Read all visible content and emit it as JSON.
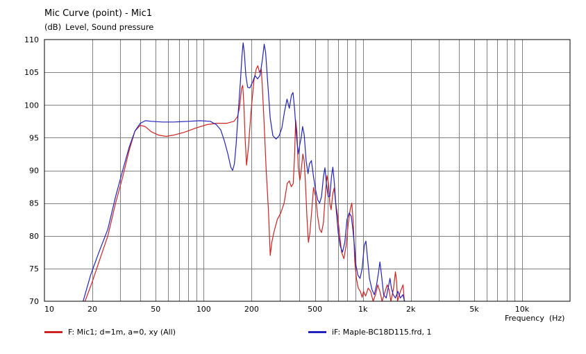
{
  "title": "Mic Curve (point) - Mic1",
  "ylabel_unit": "(dB)",
  "ylabel": "Level, Sound pressure",
  "xlabel": "Frequency",
  "xlabel_unit": "(Hz)",
  "legend": [
    {
      "label": "F: Mic1; d=1m, a=0, xy  (All)",
      "color": "#cc2222"
    },
    {
      "label": "iF: Maple-BC18D115.frd, 1",
      "color": "#2222bb"
    }
  ],
  "chart_data": {
    "type": "line",
    "title": "Mic Curve (point) - Mic1",
    "xlabel": "Frequency (Hz)",
    "ylabel": "(dB) Level, Sound pressure",
    "xscale": "log",
    "xlim": [
      10,
      20000
    ],
    "ylim": [
      70,
      110
    ],
    "grid": true,
    "legend_position": "bottom",
    "x_ticks": [
      {
        "v": 10,
        "label": "10"
      },
      {
        "v": 20,
        "label": "20"
      },
      {
        "v": 50,
        "label": "50"
      },
      {
        "v": 100,
        "label": "100"
      },
      {
        "v": 200,
        "label": "200"
      },
      {
        "v": 500,
        "label": "500"
      },
      {
        "v": 1000,
        "label": "1k"
      },
      {
        "v": 2000,
        "label": "2k"
      },
      {
        "v": 5000,
        "label": "5k"
      },
      {
        "v": 10000,
        "label": "10k"
      }
    ],
    "y_ticks": [
      70,
      75,
      80,
      85,
      90,
      95,
      100,
      105,
      110
    ],
    "series": [
      {
        "name": "F: Mic1; d=1m, a=0, xy  (All)",
        "color": "#cc2222",
        "points": [
          [
            18,
            70
          ],
          [
            20,
            73
          ],
          [
            22,
            76
          ],
          [
            25,
            80
          ],
          [
            28,
            85
          ],
          [
            31,
            89
          ],
          [
            34,
            93
          ],
          [
            37,
            96
          ],
          [
            40,
            96.9
          ],
          [
            43,
            96.7
          ],
          [
            47,
            95.9
          ],
          [
            52,
            95.4
          ],
          [
            58,
            95.2
          ],
          [
            65,
            95.4
          ],
          [
            75,
            95.8
          ],
          [
            90,
            96.5
          ],
          [
            105,
            97.0
          ],
          [
            120,
            97.2
          ],
          [
            140,
            97.2
          ],
          [
            155,
            97.5
          ],
          [
            163,
            98.2
          ],
          [
            168,
            99.6
          ],
          [
            173,
            102.5
          ],
          [
            176,
            103
          ],
          [
            179,
            100
          ],
          [
            182,
            95
          ],
          [
            186,
            90.8
          ],
          [
            191,
            93.5
          ],
          [
            198,
            98.8
          ],
          [
            207,
            103.8
          ],
          [
            214,
            105.5
          ],
          [
            219,
            106
          ],
          [
            224,
            105
          ],
          [
            230,
            105.5
          ],
          [
            234,
            102.5
          ],
          [
            240,
            97
          ],
          [
            247,
            90
          ],
          [
            255,
            84
          ],
          [
            262,
            77
          ],
          [
            268,
            79
          ],
          [
            276,
            80.5
          ],
          [
            290,
            82.5
          ],
          [
            305,
            83.5
          ],
          [
            320,
            85
          ],
          [
            335,
            88
          ],
          [
            345,
            88.4
          ],
          [
            355,
            87.5
          ],
          [
            365,
            88
          ],
          [
            372,
            92
          ],
          [
            378,
            97.7
          ],
          [
            385,
            96
          ],
          [
            393,
            90.5
          ],
          [
            402,
            88.5
          ],
          [
            410,
            90
          ],
          [
            420,
            92.5
          ],
          [
            428,
            91.5
          ],
          [
            436,
            88
          ],
          [
            445,
            83
          ],
          [
            455,
            79
          ],
          [
            465,
            80.5
          ],
          [
            478,
            84
          ],
          [
            490,
            87.4
          ],
          [
            505,
            86
          ],
          [
            520,
            83
          ],
          [
            535,
            81
          ],
          [
            550,
            80.5
          ],
          [
            565,
            82
          ],
          [
            580,
            86
          ],
          [
            595,
            89.2
          ],
          [
            608,
            88
          ],
          [
            620,
            85
          ],
          [
            632,
            84
          ],
          [
            648,
            86.5
          ],
          [
            660,
            87.3
          ],
          [
            675,
            85
          ],
          [
            695,
            83
          ],
          [
            712,
            80.5
          ],
          [
            735,
            77.5
          ],
          [
            760,
            76.5
          ],
          [
            785,
            78.5
          ],
          [
            810,
            82
          ],
          [
            832,
            84
          ],
          [
            852,
            85
          ],
          [
            870,
            82
          ],
          [
            890,
            76
          ],
          [
            910,
            73.5
          ],
          [
            935,
            72
          ],
          [
            965,
            71.5
          ],
          [
            990,
            70.6
          ],
          [
            1010,
            71.5
          ],
          [
            1040,
            70.8
          ],
          [
            1080,
            72
          ],
          [
            1120,
            71.5
          ],
          [
            1160,
            70
          ],
          [
            1200,
            71
          ],
          [
            1240,
            72.5
          ],
          [
            1280,
            71.5
          ],
          [
            1320,
            70
          ],
          [
            1380,
            71.5
          ],
          [
            1420,
            72.5
          ],
          [
            1460,
            71.8
          ],
          [
            1500,
            70
          ],
          [
            1560,
            72
          ],
          [
            1600,
            74.5
          ],
          [
            1630,
            73
          ],
          [
            1650,
            70
          ],
          [
            1720,
            71.5
          ],
          [
            1790,
            72.5
          ],
          [
            1820,
            70
          ]
        ]
      },
      {
        "name": "iF: Maple-BC18D115.frd, 1",
        "color": "#2222bb",
        "points": [
          [
            17.5,
            70
          ],
          [
            19.5,
            74
          ],
          [
            22,
            77.5
          ],
          [
            25,
            81
          ],
          [
            28,
            86
          ],
          [
            31,
            90
          ],
          [
            34,
            93.5
          ],
          [
            37,
            96
          ],
          [
            40,
            97.2
          ],
          [
            43,
            97.6
          ],
          [
            47,
            97.5
          ],
          [
            55,
            97.4
          ],
          [
            65,
            97.4
          ],
          [
            80,
            97.5
          ],
          [
            95,
            97.6
          ],
          [
            110,
            97.5
          ],
          [
            120,
            97.0
          ],
          [
            128,
            96.2
          ],
          [
            135,
            94.5
          ],
          [
            142,
            92.5
          ],
          [
            148,
            90.5
          ],
          [
            152,
            90
          ],
          [
            156,
            91
          ],
          [
            160,
            94
          ],
          [
            165,
            99
          ],
          [
            170,
            103.5
          ],
          [
            174,
            107.5
          ],
          [
            177,
            109.5
          ],
          [
            180,
            108
          ],
          [
            184,
            104.5
          ],
          [
            189,
            102.7
          ],
          [
            195,
            102.6
          ],
          [
            203,
            103.5
          ],
          [
            210,
            104.5
          ],
          [
            218,
            104
          ],
          [
            226,
            104.5
          ],
          [
            234,
            107
          ],
          [
            240,
            109.3
          ],
          [
            245,
            108
          ],
          [
            252,
            103.7
          ],
          [
            262,
            98
          ],
          [
            272,
            95.3
          ],
          [
            285,
            94.8
          ],
          [
            298,
            95.3
          ],
          [
            310,
            96.5
          ],
          [
            322,
            99
          ],
          [
            334,
            100.9
          ],
          [
            345,
            99.5
          ],
          [
            356,
            101.5
          ],
          [
            364,
            101.9
          ],
          [
            372,
            99.5
          ],
          [
            382,
            95.5
          ],
          [
            393,
            92.5
          ],
          [
            402,
            94
          ],
          [
            410,
            95
          ],
          [
            418,
            96.7
          ],
          [
            428,
            95.5
          ],
          [
            440,
            91.5
          ],
          [
            452,
            89.5
          ],
          [
            462,
            91
          ],
          [
            475,
            91.5
          ],
          [
            490,
            89
          ],
          [
            505,
            87
          ],
          [
            520,
            85.5
          ],
          [
            535,
            85
          ],
          [
            550,
            86
          ],
          [
            565,
            89
          ],
          [
            578,
            90.4
          ],
          [
            590,
            88
          ],
          [
            605,
            86
          ],
          [
            620,
            86
          ],
          [
            635,
            89
          ],
          [
            648,
            90.5
          ],
          [
            662,
            88
          ],
          [
            680,
            84
          ],
          [
            700,
            80.5
          ],
          [
            720,
            78.5
          ],
          [
            745,
            77.5
          ],
          [
            770,
            79
          ],
          [
            795,
            82.5
          ],
          [
            820,
            83.5
          ],
          [
            845,
            83
          ],
          [
            865,
            81
          ],
          [
            885,
            78.5
          ],
          [
            905,
            75.5
          ],
          [
            930,
            74
          ],
          [
            960,
            73.5
          ],
          [
            990,
            75
          ],
          [
            1020,
            78.5
          ],
          [
            1045,
            79.2
          ],
          [
            1070,
            76.5
          ],
          [
            1100,
            73.5
          ],
          [
            1140,
            71.8
          ],
          [
            1180,
            71
          ],
          [
            1220,
            72.5
          ],
          [
            1255,
            74.5
          ],
          [
            1280,
            76
          ],
          [
            1310,
            74
          ],
          [
            1350,
            71
          ],
          [
            1400,
            70.5
          ],
          [
            1440,
            72
          ],
          [
            1480,
            73.5
          ],
          [
            1510,
            72
          ],
          [
            1550,
            71
          ],
          [
            1600,
            70.5
          ],
          [
            1660,
            71.5
          ],
          [
            1720,
            70.5
          ],
          [
            1780,
            71
          ],
          [
            1830,
            70
          ]
        ]
      }
    ]
  }
}
